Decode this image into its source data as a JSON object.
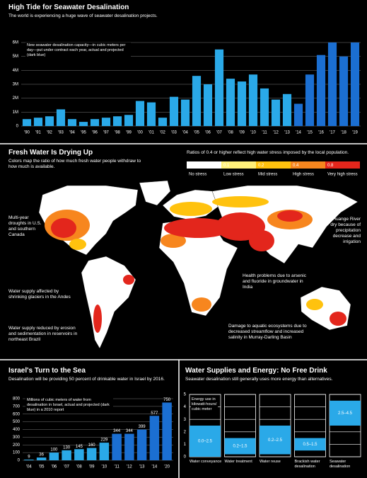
{
  "chart_data": [
    {
      "type": "bar",
      "title": "High Tide for Seawater Desalination",
      "subtitle": "The world is experiencing a huge wave of seawater desalination projects.",
      "note": "New seawater desalination capacity—in cubic meters per day—put under contract each year, actual and projected (dark blue)",
      "categories": [
        "'90",
        "'91",
        "'92",
        "'93",
        "'94",
        "'95",
        "'96",
        "'97",
        "'98",
        "'99",
        "'00",
        "'01",
        "'02",
        "'03",
        "'04",
        "'05",
        "'06",
        "'07",
        "'08",
        "'09",
        "'10",
        "'11",
        "'12",
        "'13",
        "'14",
        "'15",
        "'16",
        "'17",
        "'18",
        "'19"
      ],
      "values": [
        0.5,
        0.6,
        0.7,
        1.2,
        0.5,
        0.3,
        0.5,
        0.6,
        0.7,
        0.8,
        1.8,
        1.7,
        0.6,
        2.1,
        1.9,
        3.6,
        3.0,
        5.5,
        3.4,
        3.2,
        3.7,
        2.7,
        1.9,
        2.3,
        1.6,
        3.7,
        5.1,
        6.0,
        5.0,
        6.0
      ],
      "bar_colors": [
        "#2aa9e8",
        "#2aa9e8",
        "#2aa9e8",
        "#2aa9e8",
        "#2aa9e8",
        "#2aa9e8",
        "#2aa9e8",
        "#2aa9e8",
        "#2aa9e8",
        "#2aa9e8",
        "#2aa9e8",
        "#2aa9e8",
        "#2aa9e8",
        "#2aa9e8",
        "#2aa9e8",
        "#2aa9e8",
        "#2aa9e8",
        "#2aa9e8",
        "#2aa9e8",
        "#2aa9e8",
        "#2aa9e8",
        "#2aa9e8",
        "#2aa9e8",
        "#2aa9e8",
        "#1b6fd2",
        "#1b6fd2",
        "#1b6fd2",
        "#1b6fd2",
        "#1b6fd2",
        "#1b6fd2"
      ],
      "ylim": [
        0,
        6
      ],
      "yticks": [
        0,
        {
          "value": 1,
          "label": "1M"
        },
        {
          "value": 2,
          "label": "2M"
        },
        {
          "value": 3,
          "label": "3M"
        },
        {
          "value": 4,
          "label": "4M"
        },
        {
          "value": 5,
          "label": "5M"
        },
        {
          "value": 6,
          "label": "6M"
        }
      ],
      "grid": true
    },
    {
      "type": "map",
      "title": "Fresh Water Is Drying Up",
      "subtitle": "Colors map the ratio of how much fresh water people withdraw to how much is available.",
      "legend_title": "Ratios of 0.4 or higher reflect high water stress imposed by the local population.",
      "legend": [
        {
          "value": 0,
          "label": "No stress",
          "color": "#ffffff"
        },
        {
          "value": 0.1,
          "label": "Low stress",
          "color": "#fff07a"
        },
        {
          "value": 0.2,
          "label": "Mid stress",
          "color": "#ffc20e"
        },
        {
          "value": 0.4,
          "label": "High stress",
          "color": "#f7861e"
        },
        {
          "value": 0.8,
          "label": "Very high stress",
          "color": "#e3261c"
        }
      ],
      "annotations": [
        "Multi-year droughts in U.S. and southern Canada",
        "Huange River dry because of precipitation decrease and irrigation",
        "Water supply affected by shrinking glaciers in the Andes",
        "Health problems due to arsenic and fluoride in groundwater in India",
        "Water supply reduced by erosion and sedimentation in reservoirs in northeast Brazil",
        "Damage to aquatic ecosystems due to decreased streamflow and increased salinity in Murray-Darling Basin"
      ]
    },
    {
      "type": "bar",
      "title": "Israel's Turn to the Sea",
      "subtitle": "Desalination will be providing 50 percent of drinkable water in Israel by 2016.",
      "note": "Millions of cubic meters of water from desalination in Israel, actual and projected (dark blue) in a 2010 report",
      "categories": [
        "'04",
        "'05",
        "'06",
        "'07",
        "'08",
        "'09",
        "'10",
        "'11",
        "'12",
        "'13",
        "'14",
        "'20"
      ],
      "values": [
        9,
        36,
        100,
        130,
        145,
        160,
        229,
        344,
        344,
        399,
        577,
        750
      ],
      "bar_colors": [
        "#2aa9e8",
        "#2aa9e8",
        "#2aa9e8",
        "#2aa9e8",
        "#2aa9e8",
        "#2aa9e8",
        "#2aa9e8",
        "#1b6fd2",
        "#1b6fd2",
        "#1b6fd2",
        "#1b6fd2",
        "#1b6fd2"
      ],
      "show_values": true,
      "ylim": [
        0,
        800
      ],
      "yticks": [
        0,
        100,
        200,
        300,
        400,
        500,
        600,
        700,
        800
      ],
      "grid": true
    },
    {
      "type": "range",
      "title": "Water Supplies and Energy: No Free Drink",
      "subtitle": "Seawater desalination still generally uses more energy than alternatives.",
      "note": "Energy use in kilowatt-hours/ cubic meter",
      "categories": [
        "Water conveyance",
        "Water treatment",
        "Water reuse",
        "Brackish water desalination",
        "Seawater desalination"
      ],
      "values": [
        [
          0,
          2.5
        ],
        [
          0.2,
          1.5
        ],
        [
          0.2,
          2.5
        ],
        [
          0.5,
          1.5
        ],
        [
          2.5,
          4.5
        ]
      ],
      "value_labels": [
        "0.0–2.5",
        "0.2–1.5",
        "0.2–2.5",
        "0.5–1.5",
        "2.5–4.5"
      ],
      "color": "#2aa9e8",
      "ylim": [
        0,
        5
      ],
      "yticks": [
        0,
        1,
        2,
        3,
        4,
        5
      ],
      "grid": true
    }
  ]
}
